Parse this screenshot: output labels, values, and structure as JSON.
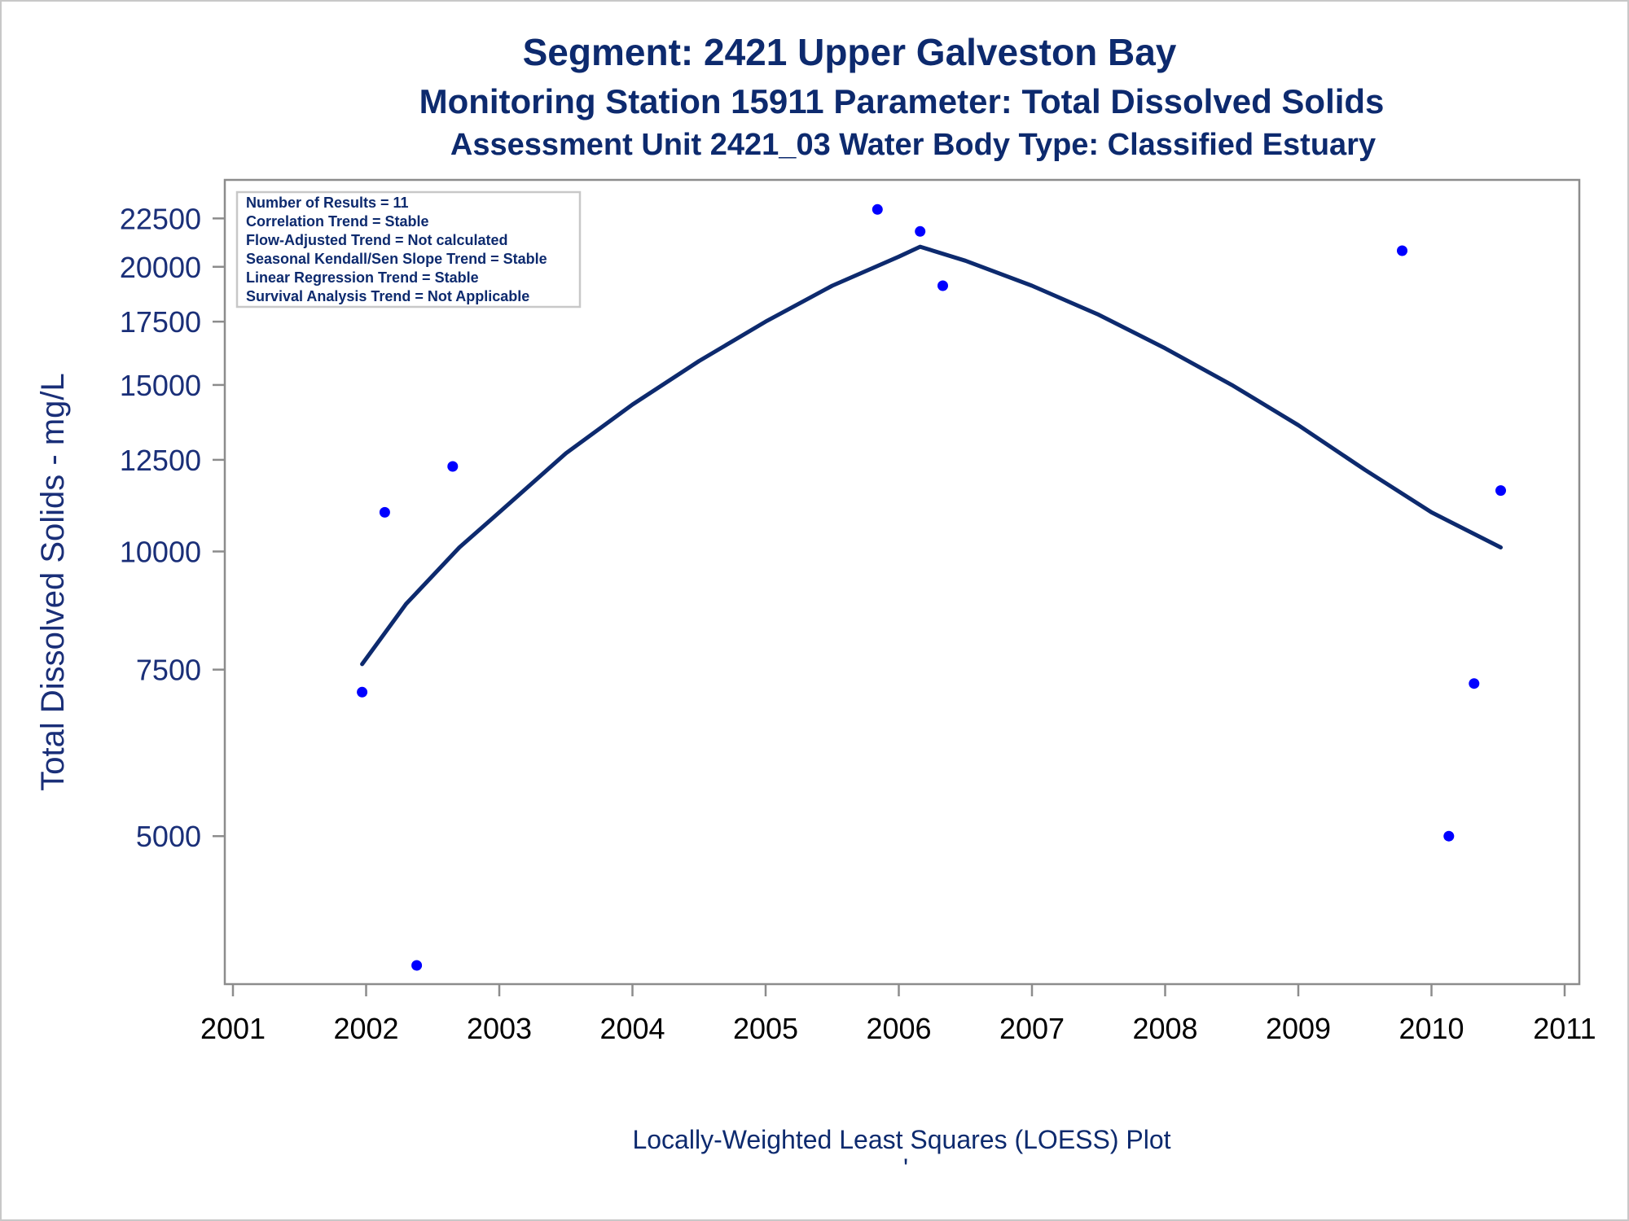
{
  "titles": {
    "line1": "Segment: 2421  Upper Galveston Bay",
    "line2": "Monitoring Station 15911 Parameter: Total Dissolved Solids",
    "line3": "Assessment Unit 2421_03   Water Body Type: Classified Estuary"
  },
  "footnote": "Locally-Weighted Least Squares (LOESS) Plot",
  "footnote_mark": "'",
  "stats_box": [
    "Number of Results = 11",
    "Correlation Trend = Stable",
    "Flow-Adjusted Trend = Not calculated",
    "Seasonal Kendall/Sen Slope Trend = Stable",
    "Linear Regression Trend = Stable",
    "Survival Analysis Trend = Not Applicable"
  ],
  "colors": {
    "title": "#0d2a6e",
    "points": "#0000ff",
    "loess_line": "#0d2a6e",
    "axis": "#8c8c8c"
  },
  "chart_data": {
    "type": "scatter",
    "title": "Segment: 2421  Upper Galveston Bay",
    "ylabel": "Total Dissolved Solids - mg/L",
    "xlabel": "",
    "y_scale": "log",
    "xlim": [
      2001,
      2011
    ],
    "ylim": [
      3550,
      23800
    ],
    "x_ticks": [
      2001,
      2002,
      2003,
      2004,
      2005,
      2006,
      2007,
      2008,
      2009,
      2010,
      2011
    ],
    "y_ticks": [
      5000,
      7500,
      10000,
      12500,
      15000,
      17500,
      20000,
      22500
    ],
    "grid": false,
    "series": [
      {
        "type": "scatter",
        "x": [
          2001.97,
          2002.14,
          2002.38,
          2002.65,
          2005.84,
          2006.16,
          2006.33,
          2009.78,
          2010.13,
          2010.32,
          2010.52
        ],
        "y": [
          7100,
          11000,
          3650,
          12300,
          23000,
          21800,
          19100,
          20800,
          5000,
          7250,
          11600
        ]
      },
      {
        "type": "line",
        "x": [
          2001.97,
          2002.3,
          2002.7,
          2003.0,
          2003.5,
          2004.0,
          2004.5,
          2005.0,
          2005.5,
          2006.0,
          2006.16,
          2006.5,
          2007.0,
          2007.5,
          2008.0,
          2008.5,
          2009.0,
          2009.5,
          2010.0,
          2010.52
        ],
        "y": [
          7600,
          8800,
          10100,
          11000,
          12700,
          14300,
          15900,
          17500,
          19100,
          20500,
          21000,
          20300,
          19100,
          17800,
          16400,
          15000,
          13600,
          12200,
          11000,
          10100
        ]
      }
    ]
  }
}
